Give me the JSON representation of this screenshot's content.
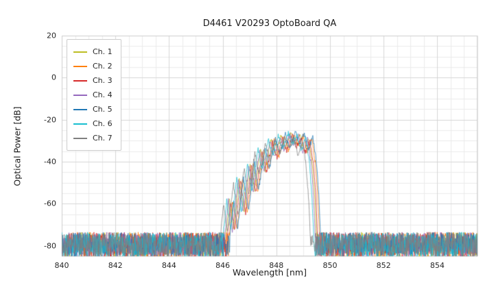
{
  "chart_data": {
    "type": "line",
    "title": "D4461 V20293 OptoBoard QA",
    "xlabel": "Wavelength [nm]",
    "ylabel": "Optical Power [dB]",
    "xlim": [
      840,
      855.5
    ],
    "ylim": [
      -85,
      20
    ],
    "xticks": [
      840,
      842,
      844,
      846,
      848,
      850,
      852,
      854
    ],
    "yticks": [
      20,
      0,
      -20,
      -40,
      -60,
      -80
    ],
    "grid": {
      "major": true,
      "minor": true,
      "x_major_step": 2,
      "x_minor_step": 0.5,
      "y_major_step": 20,
      "y_minor_step": 5
    },
    "legend_position": "upper left",
    "noise_floor": {
      "mean_db": -79.5,
      "amplitude_db": 6
    },
    "spectrum_envelope": [
      [
        846.1,
        -78
      ],
      [
        846.25,
        -58
      ],
      [
        846.4,
        -72
      ],
      [
        846.62,
        -48
      ],
      [
        846.8,
        -64
      ],
      [
        847.02,
        -41
      ],
      [
        847.18,
        -54
      ],
      [
        847.42,
        -34
      ],
      [
        847.58,
        -44
      ],
      [
        847.8,
        -29.5
      ],
      [
        847.97,
        -37
      ],
      [
        848.18,
        -27.5
      ],
      [
        848.33,
        -34
      ],
      [
        848.55,
        -26.5
      ],
      [
        848.7,
        -32
      ],
      [
        848.88,
        -27
      ],
      [
        849.03,
        -35
      ],
      [
        849.2,
        -28.5
      ],
      [
        849.33,
        -40
      ],
      [
        849.42,
        -55
      ],
      [
        849.5,
        -78
      ]
    ],
    "series": [
      {
        "name": "Ch. 1",
        "color": "#bcbd22",
        "dx": 0.0,
        "dy": 0,
        "seed": 101
      },
      {
        "name": "Ch. 2",
        "color": "#ff7f0e",
        "dx": 0.12,
        "dy": -0.5,
        "seed": 202
      },
      {
        "name": "Ch. 3",
        "color": "#d62728",
        "dx": 0.05,
        "dy": -1.0,
        "seed": 303
      },
      {
        "name": "Ch. 4",
        "color": "#9467bd",
        "dx": -0.04,
        "dy": -0.5,
        "seed": 404
      },
      {
        "name": "Ch. 5",
        "color": "#1f77b4",
        "dx": 0.16,
        "dy": 0.5,
        "seed": 505
      },
      {
        "name": "Ch. 6",
        "color": "#17becf",
        "dx": -0.1,
        "dy": 0,
        "seed": 606
      },
      {
        "name": "Ch. 7",
        "color": "#7f7f7f",
        "dx": -0.22,
        "dy": -2,
        "seed": 707
      }
    ]
  }
}
